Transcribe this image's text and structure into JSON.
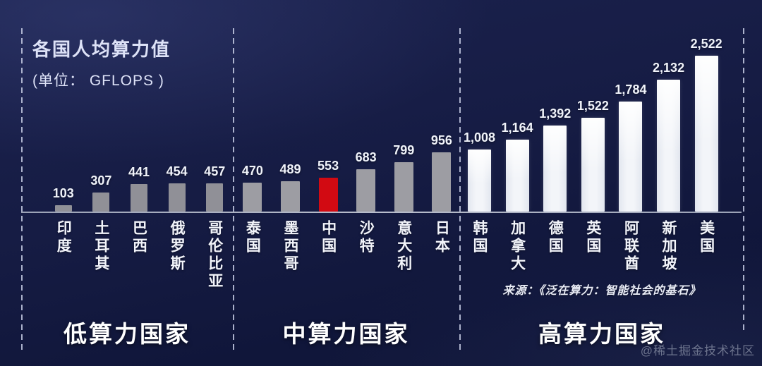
{
  "chart_data": {
    "type": "bar",
    "title": "各国人均算力值",
    "unit_label": "(单位： GFLOPS )",
    "ylabel": "",
    "xlabel": "",
    "ylim": [
      0,
      2600
    ],
    "grid": false,
    "legend_position": "none",
    "highlight_color": "#d20a12",
    "groups": [
      {
        "label": "低算力国家",
        "bar_color": "#909097",
        "bars": [
          {
            "country": "印度",
            "value": 103,
            "display": "103"
          },
          {
            "country": "土耳其",
            "value": 307,
            "display": "307"
          },
          {
            "country": "巴西",
            "value": 441,
            "display": "441"
          },
          {
            "country": "俄罗斯",
            "value": 454,
            "display": "454"
          },
          {
            "country": "哥伦比亚",
            "value": 457,
            "display": "457"
          }
        ]
      },
      {
        "label": "中算力国家",
        "bar_color": "#9d9da3",
        "bars": [
          {
            "country": "泰国",
            "value": 470,
            "display": "470"
          },
          {
            "country": "墨西哥",
            "value": 489,
            "display": "489"
          },
          {
            "country": "中国",
            "value": 553,
            "display": "553",
            "color": "#d20a12"
          },
          {
            "country": "沙特",
            "value": 683,
            "display": "683"
          },
          {
            "country": "意大利",
            "value": 799,
            "display": "799"
          },
          {
            "country": "日本",
            "value": 956,
            "display": "956"
          }
        ]
      },
      {
        "label": "高算力国家",
        "bar_color": "#f3f5f9",
        "bars": [
          {
            "country": "韩国",
            "value": 1008,
            "display": "1,008"
          },
          {
            "country": "加拿大",
            "value": 1164,
            "display": "1,164"
          },
          {
            "country": "德国",
            "value": 1392,
            "display": "1,392"
          },
          {
            "country": "英国",
            "value": 1522,
            "display": "1,522"
          },
          {
            "country": "阿联酋",
            "value": 1784,
            "display": "1,784"
          },
          {
            "country": "新加坡",
            "value": 2132,
            "display": "2,132"
          },
          {
            "country": "美国",
            "value": 2522,
            "display": "2,522"
          }
        ]
      }
    ]
  },
  "source_note": "来源：《泛在算力：智能社会的基石》",
  "watermark": "@稀土掘金技术社区"
}
